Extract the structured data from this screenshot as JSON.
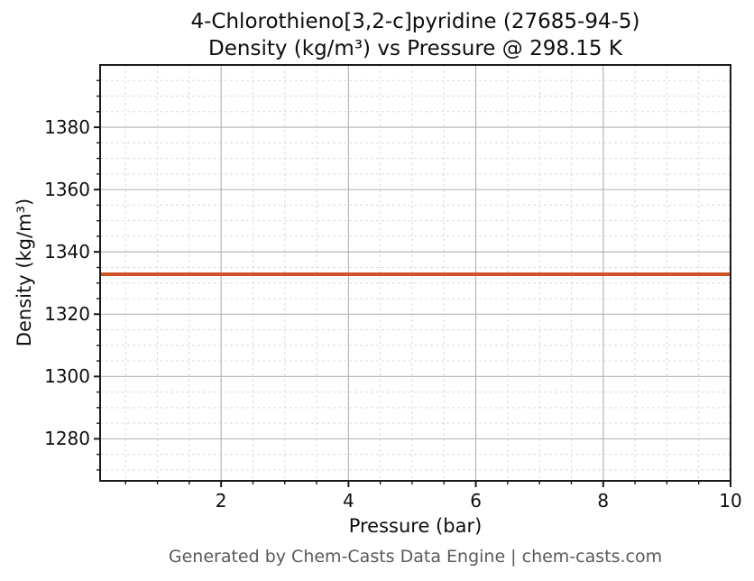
{
  "footer": {
    "text": "Generated by Chem-Casts Data Engine | chem-casts.com",
    "color": "#5a5a5a"
  },
  "colors": {
    "line": "#d05228",
    "grid_major": "#b0b0b0",
    "grid_minor": "#dcdcdc",
    "spine": "#1a1a1a",
    "text": "#0e0e0e",
    "background": "#ffffff"
  },
  "chart_data": {
    "type": "line",
    "title_line1": "4-Chlorothieno[3,2-c]pyridine (27685-94-5)",
    "title_line2": "Density (kg/m³) vs Pressure @ 298.15 K",
    "xlabel": "Pressure (bar)",
    "ylabel": "Density (kg/m³)",
    "xlim": [
      0.1,
      10
    ],
    "ylim": [
      1266.5,
      1400
    ],
    "x_major_ticks": [
      2,
      4,
      6,
      8,
      10
    ],
    "x_minor_step": 0.5,
    "y_major_ticks": [
      1280,
      1300,
      1320,
      1340,
      1360,
      1380
    ],
    "y_minor_step": 5,
    "grid": {
      "major": true,
      "minor": true,
      "minor_style": "dashed"
    },
    "legend": "none",
    "series": [
      {
        "name": "Density @ 298.15 K",
        "color": "#d05228",
        "line_width": 4,
        "x": [
          0.1,
          1,
          2,
          3,
          4,
          5,
          6,
          7,
          8,
          9,
          10
        ],
        "y": [
          1332.8,
          1332.8,
          1332.8,
          1332.8,
          1332.8,
          1332.8,
          1332.8,
          1332.8,
          1332.8,
          1332.8,
          1332.8
        ]
      }
    ]
  }
}
